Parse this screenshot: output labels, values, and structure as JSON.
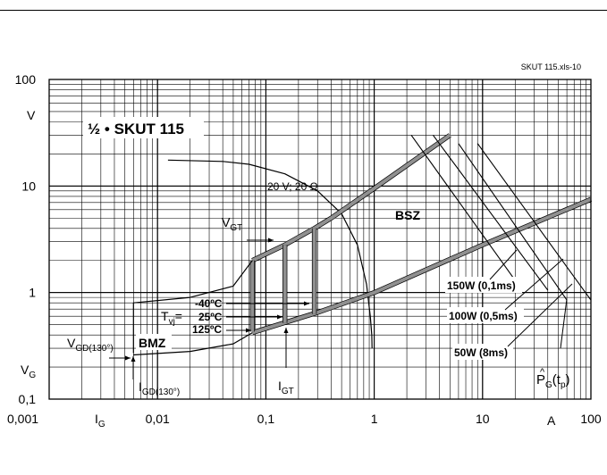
{
  "doc_ref": "SKUT 115.xls-10",
  "chart_data": {
    "type": "line",
    "title": "½ • SKUT 115",
    "x_scale": "log",
    "y_scale": "log",
    "xlim": [
      0.001,
      100
    ],
    "ylim": [
      0.1,
      100
    ],
    "x_ticks": [
      "0,001",
      "0,01",
      "0,1",
      "1",
      "10",
      "100"
    ],
    "y_ticks": [
      "0,1",
      "1",
      "10",
      "100"
    ],
    "x_label": "I",
    "x_label_sub": "G",
    "x_unit": "A",
    "y_unit": "V",
    "y_label": "V",
    "y_label_sub": "G",
    "grid": true,
    "series": [
      {
        "key": "load_line",
        "x": [
          0.0125,
          0.04,
          0.07,
          0.15,
          0.3,
          0.5,
          0.7,
          0.85,
          0.92,
          0.95,
          0.955
        ],
        "y": [
          17.5,
          17.0,
          16.0,
          13.0,
          9.0,
          5.5,
          2.8,
          1.2,
          0.6,
          0.4,
          0.3
        ]
      },
      {
        "key": "bsz_upper",
        "x": [
          0.075,
          0.15,
          0.28,
          0.4,
          1.0,
          5.0
        ],
        "y": [
          2.0,
          2.8,
          4.0,
          5.0,
          9.5,
          30.0
        ]
      },
      {
        "key": "bsz_lower",
        "x": [
          0.075,
          0.3,
          1.0,
          10.0,
          100.0
        ],
        "y": [
          0.42,
          0.65,
          1.0,
          2.8,
          7.5
        ]
      },
      {
        "key": "tvj_m40",
        "x": [
          0.075,
          0.075
        ],
        "y": [
          0.43,
          2.0
        ]
      },
      {
        "key": "tvj_25",
        "x": [
          0.15,
          0.15
        ],
        "y": [
          0.52,
          2.8
        ]
      },
      {
        "key": "tvj_125",
        "x": [
          0.28,
          0.28
        ],
        "y": [
          0.63,
          4.0
        ]
      },
      {
        "key": "min_trigger",
        "x": [
          0.006,
          0.006,
          0.02,
          0.05,
          0.075
        ],
        "y": [
          0.27,
          0.8,
          0.9,
          1.15,
          2.0
        ]
      },
      {
        "key": "vgd_line",
        "x": [
          0.006,
          0.02,
          0.05,
          0.075
        ],
        "y": [
          0.26,
          0.28,
          0.33,
          0.42
        ]
      },
      {
        "key": "pg150",
        "x": [
          2.2,
          20.0
        ],
        "y": [
          30.0,
          1.3
        ]
      },
      {
        "key": "pg100",
        "x": [
          3.5,
          40.0
        ],
        "y": [
          30.0,
          1.05
        ]
      },
      {
        "key": "pg50",
        "x": [
          6.0,
          60.0
        ],
        "y": [
          25.0,
          0.85
        ]
      },
      {
        "key": "pg_extra",
        "x": [
          9.0,
          100.0
        ],
        "y": [
          25.0,
          0.85
        ]
      }
    ],
    "annotations": {
      "load_line": "20 V; 20 Ω",
      "bsz": "BSZ",
      "bmz": "BMZ",
      "vgt": "V",
      "vgt_sub": "GT",
      "igt": "I",
      "igt_sub": "GT",
      "vgd": "V",
      "vgd_sub": "GD(130°)",
      "igd": "I",
      "igd_sub": "GD(130°)",
      "tvj": "T",
      "tvj_sub": "vj",
      "tvj_eq": "=",
      "temp_m40": "-40ºC",
      "temp_25": "25ºC",
      "temp_125": "125ºC",
      "pg150": "150W (0,1ms)",
      "pg100": "100W (0,5ms)",
      "pg50": "50W (8ms)",
      "pg_label": "P",
      "pg_hat": "^",
      "pg_sub": "G",
      "pg_arg": "(t",
      "pg_arg_sub": "p",
      "pg_close": ")"
    },
    "colors": {
      "boundary": "#909090",
      "ink": "#000000",
      "grid": "#000000"
    }
  }
}
